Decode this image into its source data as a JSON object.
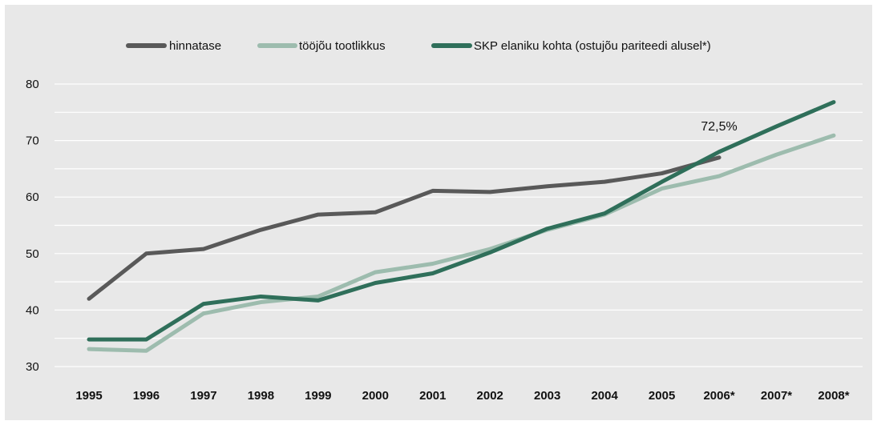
{
  "chart_data": {
    "type": "line",
    "categories": [
      "1995",
      "1996",
      "1997",
      "1998",
      "1999",
      "2000",
      "2001",
      "2002",
      "2003",
      "2004",
      "2005",
      "2006*",
      "2007*",
      "2008*"
    ],
    "ylim": [
      30,
      80
    ],
    "yticks": [
      30,
      40,
      50,
      60,
      70,
      80
    ],
    "yticklabels": [
      "30",
      "40",
      "50",
      "60",
      "70",
      "80"
    ],
    "grid": true,
    "legend_position": "top",
    "series": [
      {
        "name": "hinnatase",
        "color": "#595959",
        "values": [
          42.0,
          50.0,
          50.8,
          54.2,
          56.9,
          57.3,
          61.1,
          60.9,
          61.9,
          62.7,
          64.2,
          67.0,
          null,
          null
        ]
      },
      {
        "name": "tööjõu tootlikkus",
        "color": "#9dbcae",
        "values": [
          33.1,
          32.8,
          39.4,
          41.4,
          42.4,
          46.7,
          48.2,
          50.8,
          54.2,
          56.9,
          61.5,
          63.7,
          67.5,
          70.9
        ]
      },
      {
        "name": "SKP elaniku kohta (ostujõu pariteedi alusel*)",
        "color": "#2f6f5a",
        "values": [
          34.8,
          34.8,
          41.1,
          42.4,
          41.7,
          44.8,
          46.5,
          50.2,
          54.4,
          57.1,
          62.7,
          68.0,
          72.5,
          76.8
        ]
      }
    ],
    "annotations": [
      {
        "text": "72,5%",
        "category": "2006*",
        "value": 72.5
      }
    ]
  }
}
